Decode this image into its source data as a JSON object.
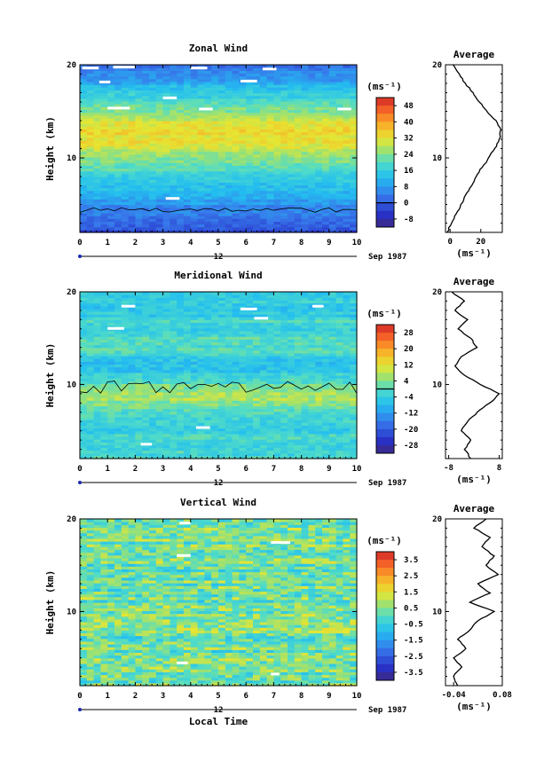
{
  "chart_data": [
    {
      "type": "heatmap",
      "title": "Zonal Wind",
      "ylabel": "Height (km)",
      "xticks": [
        "0",
        "1",
        "2",
        "3",
        "4",
        "5",
        "6",
        "7",
        "8",
        "9",
        "10"
      ],
      "yticks": [
        "10",
        "20"
      ],
      "ylim": [
        2,
        20
      ],
      "xlim": [
        0,
        10
      ],
      "date_marker": "12",
      "date_label": "Sep 1987",
      "colorbar_unit": "(ms⁻¹)",
      "colorbar_ticks": [
        "48",
        "40",
        "32",
        "24",
        "16",
        "8",
        "0",
        "-8"
      ],
      "colorbar_values": [
        48,
        40,
        32,
        24,
        16,
        8,
        0,
        -8
      ],
      "cmin": -12,
      "cmax": 52,
      "contour_value": 0,
      "profile": {
        "title": "Average",
        "xlabel": "(ms⁻¹)",
        "xticks": [
          "0",
          "20"
        ],
        "xtick_values": [
          0,
          20
        ],
        "xlim": [
          -3,
          34
        ],
        "yticks": [
          "10",
          "20"
        ],
        "heights": [
          2,
          3,
          4,
          5,
          6,
          7,
          8,
          9,
          10,
          11,
          12,
          13,
          14,
          15,
          16,
          17,
          18,
          19,
          20
        ],
        "values": [
          -2,
          1,
          4,
          7,
          10,
          14,
          17,
          21,
          25,
          29,
          32,
          33,
          30,
          24,
          19,
          15,
          10,
          6,
          2
        ]
      }
    },
    {
      "type": "heatmap",
      "title": "Meridional Wind",
      "ylabel": "Height (km)",
      "xticks": [
        "0",
        "1",
        "2",
        "3",
        "4",
        "5",
        "6",
        "7",
        "8",
        "9",
        "10"
      ],
      "yticks": [
        "10",
        "20"
      ],
      "ylim": [
        2,
        20
      ],
      "xlim": [
        0,
        10
      ],
      "date_marker": "12",
      "date_label": "Sep 1987",
      "colorbar_unit": "(ms⁻¹)",
      "colorbar_ticks": [
        "28",
        "20",
        "12",
        "4",
        "-4",
        "-12",
        "-20",
        "-28"
      ],
      "colorbar_values": [
        28,
        20,
        12,
        4,
        -4,
        -12,
        -20,
        -28
      ],
      "cmin": -32,
      "cmax": 32,
      "contour_value": 0,
      "profile": {
        "title": "Average",
        "xlabel": "(ms⁻¹)",
        "xticks": [
          "-8",
          "8"
        ],
        "xtick_values": [
          -8,
          8
        ],
        "xlim": [
          -9,
          9
        ],
        "yticks": [
          "10",
          "20"
        ],
        "heights": [
          2,
          3,
          4,
          5,
          6,
          7,
          8,
          9,
          10,
          11,
          12,
          13,
          14,
          15,
          16,
          17,
          18,
          19,
          20
        ],
        "values": [
          -1,
          -3,
          -1,
          -4,
          -2,
          1,
          5,
          8,
          2,
          -3,
          -6,
          -4,
          1,
          -1,
          -5,
          -2,
          -6,
          -3,
          -7
        ]
      }
    },
    {
      "type": "heatmap",
      "title": "Vertical Wind",
      "ylabel": "Height (km)",
      "xlabel": "Local Time",
      "xticks": [
        "0",
        "1",
        "2",
        "3",
        "4",
        "5",
        "6",
        "7",
        "8",
        "9",
        "10"
      ],
      "yticks": [
        "10",
        "20"
      ],
      "ylim": [
        2,
        20
      ],
      "xlim": [
        0,
        10
      ],
      "date_marker": "12",
      "date_label": "Sep 1987",
      "colorbar_unit": "(ms⁻¹)",
      "colorbar_ticks": [
        "3.5",
        "2.5",
        "1.5",
        "0.5",
        "-0.5",
        "-1.5",
        "-2.5",
        "-3.5"
      ],
      "colorbar_values": [
        3.5,
        2.5,
        1.5,
        0.5,
        -0.5,
        -1.5,
        -2.5,
        -3.5
      ],
      "cmin": -4,
      "cmax": 4,
      "profile": {
        "title": "Average",
        "xlabel": "(ms⁻¹)",
        "xticks": [
          "-0.04",
          "0.08"
        ],
        "xtick_values": [
          -0.04,
          0.08
        ],
        "xlim": [
          -0.06,
          0.08
        ],
        "yticks": [
          "10",
          "20"
        ],
        "heights": [
          2,
          3,
          4,
          5,
          6,
          7,
          8,
          9,
          10,
          11,
          12,
          13,
          14,
          15,
          16,
          17,
          18,
          19,
          20
        ],
        "values": [
          -0.03,
          -0.04,
          -0.02,
          -0.04,
          -0.01,
          -0.03,
          0.0,
          0.02,
          0.06,
          0.0,
          0.05,
          0.02,
          0.07,
          0.04,
          0.06,
          0.03,
          0.05,
          0.01,
          0.04
        ]
      }
    }
  ]
}
